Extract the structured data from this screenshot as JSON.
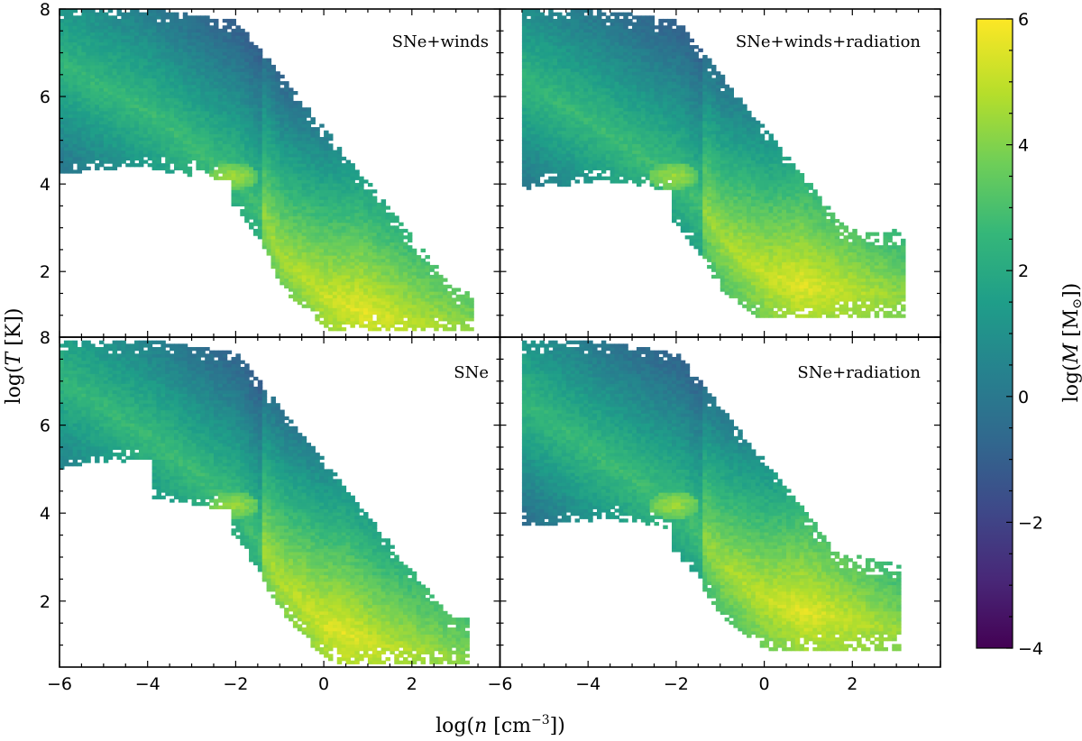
{
  "chart_data": {
    "type": "heatmap",
    "description_free": true,
    "xlabel": "log(n [cm⁻³])",
    "ylabel": "log(T [K])",
    "xlim": [
      -6,
      4
    ],
    "ylim": [
      0.5,
      8
    ],
    "x_ticks": [
      -6,
      -4,
      -2,
      0,
      2
    ],
    "x_tick_labels": [
      "−6",
      "−4",
      "−2",
      "0",
      "2"
    ],
    "y_ticks": [
      2,
      4,
      6,
      8
    ],
    "y_tick_labels": [
      "2",
      "4",
      "6",
      "8"
    ],
    "colorbar": {
      "label": "log(M [M⊙])",
      "range": [
        -4,
        6
      ],
      "ticks": [
        -4,
        -2,
        0,
        2,
        4,
        6
      ],
      "tick_labels": [
        "−4",
        "−2",
        "0",
        "2",
        "4",
        "6"
      ],
      "colormap": "viridis"
    },
    "colormap_stops": [
      "#440154",
      "#482878",
      "#3e4989",
      "#31688e",
      "#26828e",
      "#1f9e89",
      "#35b779",
      "#6ece58",
      "#b5de2b",
      "#fde725"
    ],
    "panels": [
      {
        "label": "SNe+winds",
        "position": "top-left",
        "density_ridge": [
          [
            -6,
            6.7
          ],
          [
            -4,
            5.6
          ],
          [
            -2.5,
            4.4
          ],
          [
            -2,
            4.1
          ],
          [
            -1.5,
            3.4
          ],
          [
            -1,
            2.3
          ],
          [
            0,
            1.4
          ],
          [
            1,
            1.0
          ],
          [
            2,
            0.85
          ],
          [
            3,
            0.72
          ]
        ],
        "max_x": 3.3,
        "peak_x": 0.8,
        "hot_upper": 8.0,
        "cold_lower": 0.62,
        "hot_start": -6.0,
        "hot_min_at_left": 4.2,
        "high_density_spread": 0.25,
        "late_noise": 0.05
      },
      {
        "label": "SNe+winds+radiation",
        "position": "top-right",
        "density_ridge": [
          [
            -5.5,
            6.3
          ],
          [
            -4,
            5.4
          ],
          [
            -2.5,
            4.4
          ],
          [
            -2,
            4.15
          ],
          [
            -1.5,
            3.5
          ],
          [
            -1,
            2.7
          ],
          [
            0,
            1.9
          ],
          [
            1,
            1.6
          ],
          [
            2,
            1.5
          ],
          [
            3,
            1.4
          ]
        ],
        "max_x": 3.1,
        "peak_x": 0.8,
        "hot_upper": 8.0,
        "cold_lower": 0.9,
        "hot_start": -5.6,
        "hot_min_at_left": 3.8,
        "high_density_spread": 0.9,
        "late_noise": 0.25
      },
      {
        "label": "SNe",
        "position": "bottom-left",
        "density_ridge": [
          [
            -6,
            7.0
          ],
          [
            -4,
            5.7
          ],
          [
            -2.5,
            4.5
          ],
          [
            -2,
            4.15
          ],
          [
            -1.5,
            3.3
          ],
          [
            -1,
            2.4
          ],
          [
            0,
            1.4
          ],
          [
            1,
            1.0
          ],
          [
            2,
            0.85
          ],
          [
            3,
            0.7
          ]
        ],
        "max_x": 3.2,
        "peak_x": 0.4,
        "hot_upper": 7.9,
        "cold_lower": 0.55,
        "hot_start": -6.0,
        "hot_min_at_left": 5.0,
        "high_density_spread": 0.3,
        "late_noise": 0.04
      },
      {
        "label": "SNe+radiation",
        "position": "bottom-right",
        "density_ridge": [
          [
            -5.5,
            6.5
          ],
          [
            -4,
            5.4
          ],
          [
            -2.5,
            4.4
          ],
          [
            -2,
            4.15
          ],
          [
            -1.5,
            3.5
          ],
          [
            -1,
            2.8
          ],
          [
            0,
            2.0
          ],
          [
            1,
            1.7
          ],
          [
            2,
            1.5
          ],
          [
            3,
            1.3
          ]
        ],
        "max_x": 3.0,
        "peak_x": 0.9,
        "hot_upper": 7.9,
        "cold_lower": 0.85,
        "hot_start": -5.6,
        "hot_min_at_left": 3.6,
        "high_density_spread": 0.9,
        "late_noise": 0.25
      }
    ]
  }
}
